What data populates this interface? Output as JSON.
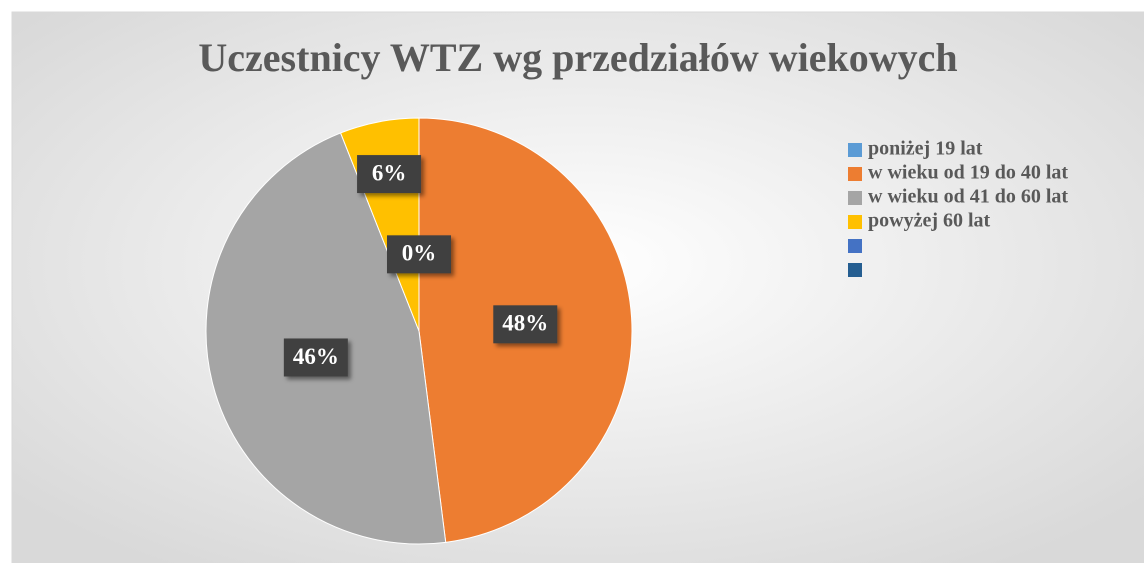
{
  "chart_data": {
    "type": "pie",
    "title": "Uczestnicy WTZ wg przedziałów wiekowych",
    "categories": [
      "poniżej 19 lat",
      "w wieku od 19 do 40 lat",
      "w wieku od 41 do 60 lat",
      "powyżej 60 lat",
      null,
      null
    ],
    "values": [
      0,
      48,
      46,
      6,
      null,
      null
    ],
    "value_labels": [
      "0%",
      "48%",
      "46%",
      "6%",
      null,
      null
    ],
    "colors": [
      "#5b9bd5",
      "#ed7d31",
      "#a5a5a5",
      "#ffc000",
      "#4472c4",
      "#255e91"
    ],
    "legend": "right"
  }
}
